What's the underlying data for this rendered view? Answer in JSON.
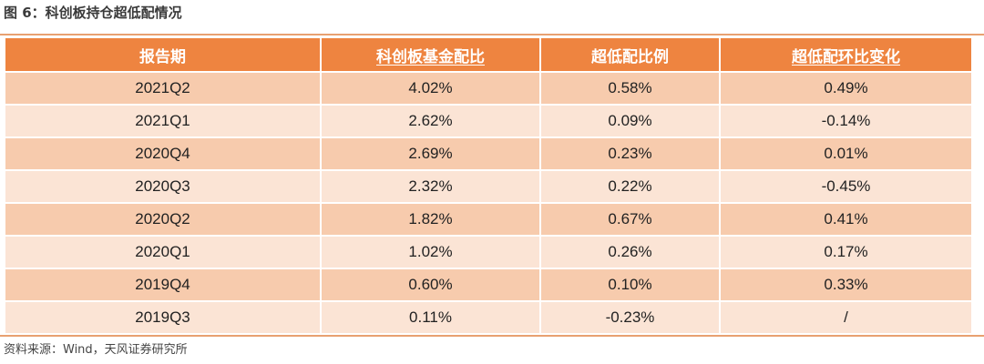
{
  "caption": "图 6：科创板持仓超低配情况",
  "table": {
    "headers": [
      "报告期",
      "科创板基金配比",
      "超低配比例",
      "超低配环比变化"
    ],
    "rows": [
      [
        "2021Q2",
        "4.02%",
        "0.58%",
        "0.49%"
      ],
      [
        "2021Q1",
        "2.62%",
        "0.09%",
        "-0.14%"
      ],
      [
        "2020Q4",
        "2.69%",
        "0.23%",
        "0.01%"
      ],
      [
        "2020Q3",
        "2.32%",
        "0.22%",
        "-0.45%"
      ],
      [
        "2020Q2",
        "1.82%",
        "0.67%",
        "0.41%"
      ],
      [
        "2020Q1",
        "1.02%",
        "0.26%",
        "0.17%"
      ],
      [
        "2019Q4",
        "0.60%",
        "0.10%",
        "0.33%"
      ],
      [
        "2019Q3",
        "0.11%",
        "-0.23%",
        "/"
      ]
    ]
  },
  "source": "资料来源：Wind，天风证券研究所",
  "colors": {
    "header_bg": "#ee8440",
    "row_odd": "#f7cbad",
    "row_even": "#fbe4d5",
    "rule": "#e8a070"
  }
}
